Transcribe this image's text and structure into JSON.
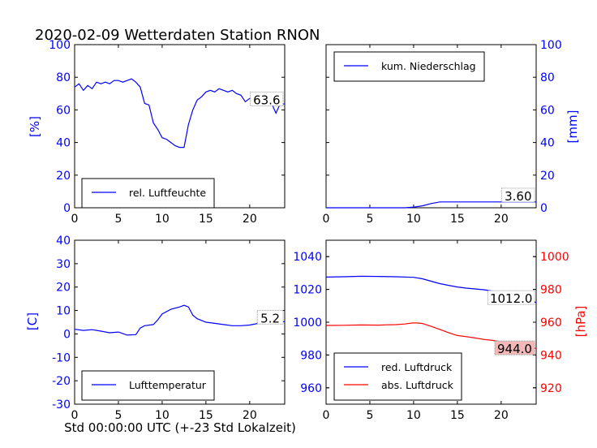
{
  "title": "2020-02-09 Wetterdaten Station RNON",
  "xlabel_bottom": "Std 00:00:00 UTC (+-23 Std Lokalzeit)",
  "colors": {
    "blue": "#0000ff",
    "red": "#ff0000",
    "box_bg": "#ffffff",
    "box_red_bg": "#f4b8b8"
  },
  "chart_data": [
    {
      "type": "line",
      "panel": "top-left",
      "xlim": [
        0,
        24
      ],
      "ylim": [
        0,
        100
      ],
      "xticks": [
        0,
        5,
        10,
        15,
        20
      ],
      "yticks": [
        0,
        20,
        40,
        60,
        80,
        100
      ],
      "ylabel": "[%]",
      "legend": {
        "position": "lower-center",
        "entries": [
          "rel. Luftfeuchte"
        ]
      },
      "value_box": "63.6",
      "series": [
        {
          "name": "rel. Luftfeuchte",
          "color": "#0000ff",
          "x": [
            0,
            0.5,
            1,
            1.5,
            2,
            2.5,
            3,
            3.5,
            4,
            4.5,
            5,
            5.5,
            6,
            6.5,
            7,
            7.5,
            8,
            8.5,
            9,
            9.5,
            10,
            10.5,
            11,
            11.5,
            12,
            12.5,
            13,
            13.5,
            14,
            14.5,
            15,
            15.5,
            16,
            16.5,
            17,
            17.5,
            18,
            18.5,
            19,
            19.5,
            20,
            20.5,
            21,
            21.5,
            22,
            22.5,
            23,
            23.5,
            24
          ],
          "y": [
            74,
            76,
            72,
            75,
            73,
            77,
            76,
            77,
            76,
            78,
            78,
            77,
            78,
            79,
            77,
            74,
            64,
            63,
            52,
            48,
            43,
            42,
            40,
            38,
            37,
            37,
            51,
            60,
            66,
            68,
            71,
            72,
            71,
            73,
            72,
            71,
            72,
            70,
            69,
            65,
            67,
            67,
            66,
            64,
            63,
            64,
            58,
            64,
            63.6
          ]
        }
      ]
    },
    {
      "type": "line",
      "panel": "top-right",
      "xlim": [
        0,
        24
      ],
      "ylim": [
        0,
        100
      ],
      "xticks": [
        0,
        5,
        10,
        15,
        20
      ],
      "yticks": [
        0,
        20,
        40,
        60,
        80,
        100
      ],
      "ylabel": "[mm]",
      "legend": {
        "position": "upper-left",
        "entries": [
          "kum. Niederschlag"
        ]
      },
      "value_box": "3.60",
      "series": [
        {
          "name": "kum. Niederschlag",
          "color": "#0000ff",
          "x": [
            0,
            5,
            9,
            10,
            11,
            12,
            13,
            14,
            15,
            16,
            17,
            18,
            19,
            20,
            21,
            22,
            23,
            24
          ],
          "y": [
            0,
            0,
            0,
            0.4,
            1.2,
            2.6,
            3.6,
            3.6,
            3.6,
            3.6,
            3.6,
            3.6,
            3.6,
            3.6,
            3.6,
            3.6,
            3.6,
            3.6
          ]
        }
      ]
    },
    {
      "type": "line",
      "panel": "bottom-left",
      "xlim": [
        0,
        24
      ],
      "ylim": [
        -30,
        40
      ],
      "xticks": [
        0,
        5,
        10,
        15,
        20
      ],
      "yticks": [
        -30,
        -20,
        -10,
        0,
        10,
        20,
        30,
        40
      ],
      "ylabel": "[C]",
      "legend": {
        "position": "lower-center",
        "entries": [
          "Lufttemperatur"
        ]
      },
      "value_box": "5.2",
      "series": [
        {
          "name": "Lufttemperatur",
          "color": "#0000ff",
          "x": [
            0,
            1,
            2,
            3,
            4,
            5,
            6,
            7,
            7.5,
            8,
            9,
            9.5,
            10,
            11,
            12,
            12.5,
            13,
            13.5,
            14,
            15,
            16,
            17,
            18,
            19,
            20,
            21,
            22,
            23,
            24
          ],
          "y": [
            2,
            1.5,
            1.8,
            1.2,
            0.5,
            0.8,
            -0.5,
            -0.3,
            2.5,
            3.5,
            4,
            6,
            8.5,
            10.5,
            11.5,
            12.2,
            11.5,
            8,
            6.5,
            5,
            4.5,
            4,
            3.5,
            3.5,
            3.8,
            4.5,
            5,
            5.2,
            5.2
          ]
        }
      ]
    },
    {
      "type": "line",
      "panel": "bottom-right",
      "xlim": [
        0,
        24
      ],
      "ylim_left": [
        950,
        1050
      ],
      "ylim_right": [
        910,
        1010
      ],
      "xticks": [
        0,
        5,
        10,
        15,
        20
      ],
      "yticks_left": [
        960,
        980,
        1000,
        1020,
        1040
      ],
      "yticks_right": [
        920,
        940,
        960,
        980,
        1000
      ],
      "ylabel_right": "[hPa]",
      "legend": {
        "position": "lower-left",
        "entries": [
          "red. Luftdruck",
          "abs. Luftdruck"
        ]
      },
      "value_boxes": [
        "1012.0",
        "944.0"
      ],
      "series": [
        {
          "name": "red. Luftdruck",
          "color": "#0000ff",
          "axis": "left",
          "x": [
            0,
            2,
            4,
            6,
            8,
            10,
            11,
            12,
            13,
            14,
            15,
            16,
            17,
            18,
            19,
            20,
            21,
            22,
            23,
            24
          ],
          "y": [
            1027.5,
            1027.7,
            1028,
            1027.9,
            1027.7,
            1027.4,
            1026.5,
            1025,
            1023.5,
            1022.5,
            1021.5,
            1020.8,
            1020.3,
            1019.8,
            1019,
            1018,
            1017,
            1015.5,
            1014,
            1012
          ]
        },
        {
          "name": "abs. Luftdruck",
          "color": "#ff0000",
          "axis": "right",
          "x": [
            0,
            2,
            4,
            6,
            7,
            8,
            9,
            10,
            10.5,
            11,
            12,
            13,
            14,
            15,
            16,
            17,
            18,
            19,
            20,
            21,
            22,
            23,
            24
          ],
          "y": [
            958,
            958.1,
            958.3,
            958.2,
            958.4,
            958.5,
            958.9,
            959.6,
            959.5,
            959.2,
            957.5,
            955.6,
            953.6,
            951.9,
            951.2,
            950.4,
            949.5,
            948.9,
            948.1,
            946.9,
            945.9,
            944.9,
            944
          ]
        }
      ]
    }
  ]
}
